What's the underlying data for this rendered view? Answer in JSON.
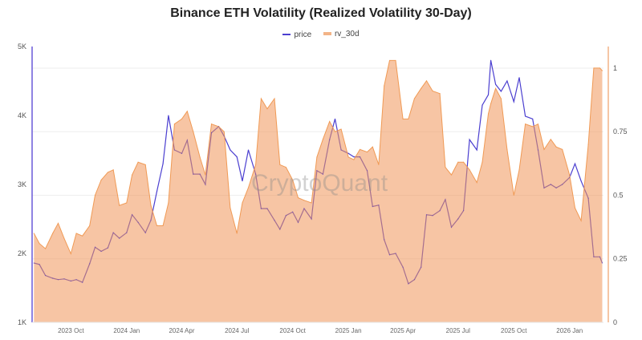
{
  "chart_data": {
    "type": "line",
    "title": "Binance ETH Volatility (Realized Volatility 30-Day)",
    "watermark": "CryptoQuant",
    "legend_position": "top",
    "grid": true,
    "x_range": [
      "2023-07-29",
      "2026-02-26"
    ],
    "x_ticks": [
      {
        "date": "2023-10-01",
        "label": "2023 Oct"
      },
      {
        "date": "2024-01-01",
        "label": "2024 Jan"
      },
      {
        "date": "2024-04-01",
        "label": "2024 Apr"
      },
      {
        "date": "2024-07-01",
        "label": "2024 Jul"
      },
      {
        "date": "2024-10-01",
        "label": "2024 Oct"
      },
      {
        "date": "2025-01-01",
        "label": "2025 Jan"
      },
      {
        "date": "2025-04-01",
        "label": "2025 Apr"
      },
      {
        "date": "2025-07-01",
        "label": "2025 Jul"
      },
      {
        "date": "2025-10-01",
        "label": "2025 Oct"
      },
      {
        "date": "2026-01-01",
        "label": "2026 Jan"
      }
    ],
    "y_left": {
      "range": [
        1000,
        5000
      ],
      "ticks": [
        {
          "v": 1000,
          "label": "1K"
        },
        {
          "v": 2000,
          "label": "2K"
        },
        {
          "v": 3000,
          "label": "3K"
        },
        {
          "v": 4000,
          "label": "4K"
        },
        {
          "v": 5000,
          "label": "5K"
        }
      ]
    },
    "y_right": {
      "range": [
        0,
        1.085
      ],
      "ticks": [
        {
          "v": 0,
          "label": "0"
        },
        {
          "v": 0.25,
          "label": "0.25"
        },
        {
          "v": 0.5,
          "label": "0.5"
        },
        {
          "v": 0.75,
          "label": "0.75"
        },
        {
          "v": 1,
          "label": "1"
        }
      ]
    },
    "x": [
      "2023-08-01",
      "2023-08-10",
      "2023-08-20",
      "2023-09-01",
      "2023-09-10",
      "2023-09-20",
      "2023-10-01",
      "2023-10-10",
      "2023-10-20",
      "2023-11-01",
      "2023-11-10",
      "2023-11-20",
      "2023-12-01",
      "2023-12-10",
      "2023-12-20",
      "2024-01-01",
      "2024-01-10",
      "2024-01-20",
      "2024-02-01",
      "2024-02-10",
      "2024-02-20",
      "2024-03-01",
      "2024-03-10",
      "2024-03-20",
      "2024-04-01",
      "2024-04-10",
      "2024-04-20",
      "2024-05-01",
      "2024-05-10",
      "2024-05-20",
      "2024-06-01",
      "2024-06-10",
      "2024-06-20",
      "2024-07-01",
      "2024-07-10",
      "2024-07-20",
      "2024-08-01",
      "2024-08-10",
      "2024-08-20",
      "2024-09-01",
      "2024-09-10",
      "2024-09-20",
      "2024-10-01",
      "2024-10-10",
      "2024-10-20",
      "2024-11-01",
      "2024-11-10",
      "2024-11-20",
      "2024-12-01",
      "2024-12-10",
      "2024-12-20",
      "2025-01-01",
      "2025-01-10",
      "2025-01-20",
      "2025-02-01",
      "2025-02-10",
      "2025-02-20",
      "2025-03-01",
      "2025-03-10",
      "2025-03-20",
      "2025-04-01",
      "2025-04-10",
      "2025-04-20",
      "2025-05-01",
      "2025-05-10",
      "2025-05-20",
      "2025-06-01",
      "2025-06-10",
      "2025-06-20",
      "2025-07-01",
      "2025-07-10",
      "2025-07-20",
      "2025-08-01",
      "2025-08-10",
      "2025-08-20",
      "2025-08-24",
      "2025-09-01",
      "2025-09-10",
      "2025-09-20",
      "2025-10-01",
      "2025-10-10",
      "2025-10-20",
      "2025-11-01",
      "2025-11-10",
      "2025-11-20",
      "2025-12-01",
      "2025-12-10",
      "2025-12-20",
      "2026-01-01",
      "2026-01-10",
      "2026-01-20",
      "2026-02-01",
      "2026-02-10",
      "2026-02-20",
      "2026-02-24"
    ],
    "series": [
      {
        "name": "price",
        "axis": "left",
        "style": "line",
        "color": "#4b3fd0",
        "values": [
          1860,
          1840,
          1680,
          1640,
          1620,
          1630,
          1600,
          1620,
          1580,
          1850,
          2090,
          2030,
          2080,
          2300,
          2220,
          2300,
          2560,
          2450,
          2300,
          2480,
          2900,
          3300,
          4000,
          3500,
          3450,
          3640,
          3150,
          3150,
          3000,
          3750,
          3840,
          3700,
          3500,
          3400,
          3050,
          3500,
          3150,
          2650,
          2650,
          2480,
          2350,
          2550,
          2600,
          2450,
          2650,
          2500,
          3200,
          3150,
          3650,
          3950,
          3500,
          3450,
          3400,
          3400,
          3200,
          2680,
          2700,
          2200,
          1980,
          2000,
          1800,
          1560,
          1620,
          1800,
          2560,
          2550,
          2620,
          2780,
          2380,
          2500,
          2620,
          3650,
          3500,
          4150,
          4300,
          4800,
          4450,
          4350,
          4500,
          4200,
          4550,
          3990,
          3950,
          3500,
          2950,
          3000,
          2950,
          3000,
          3100,
          3300,
          3050,
          2800,
          1950,
          1950,
          1860
        ]
      },
      {
        "name": "rv_30d",
        "axis": "right",
        "style": "area",
        "color": "#f09a55",
        "values": [
          0.35,
          0.31,
          0.29,
          0.35,
          0.39,
          0.33,
          0.27,
          0.35,
          0.34,
          0.38,
          0.5,
          0.56,
          0.59,
          0.6,
          0.46,
          0.47,
          0.58,
          0.63,
          0.62,
          0.46,
          0.38,
          0.38,
          0.47,
          0.78,
          0.8,
          0.83,
          0.75,
          0.65,
          0.58,
          0.78,
          0.77,
          0.75,
          0.45,
          0.35,
          0.47,
          0.53,
          0.62,
          0.88,
          0.84,
          0.88,
          0.62,
          0.61,
          0.56,
          0.49,
          0.48,
          0.47,
          0.65,
          0.72,
          0.79,
          0.75,
          0.76,
          0.65,
          0.64,
          0.68,
          0.67,
          0.69,
          0.62,
          0.93,
          1.03,
          1.03,
          0.8,
          0.8,
          0.88,
          0.92,
          0.95,
          0.91,
          0.9,
          0.61,
          0.58,
          0.63,
          0.63,
          0.6,
          0.55,
          0.63,
          0.82,
          0.86,
          0.92,
          0.88,
          0.68,
          0.5,
          0.6,
          0.78,
          0.77,
          0.78,
          0.68,
          0.72,
          0.69,
          0.68,
          0.58,
          0.45,
          0.4,
          0.7,
          1.0,
          1.0,
          0.99
        ]
      }
    ]
  }
}
